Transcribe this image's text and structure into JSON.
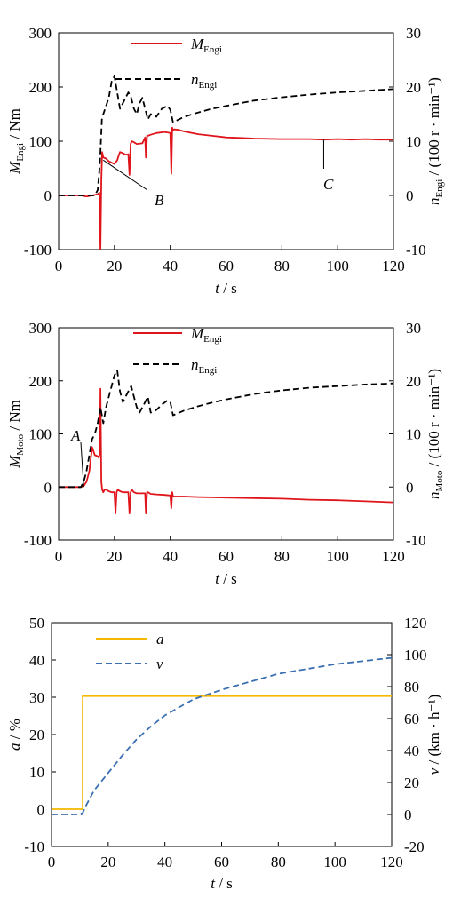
{
  "chart_data": [
    {
      "type": "line",
      "x_tick_labels": [
        "0",
        "20",
        "40",
        "60",
        "80",
        "100",
        "120"
      ],
      "xlabel": {
        "var": "t",
        "unit": " / s"
      },
      "xlim": [
        0,
        120
      ],
      "y_left": {
        "tick_labels": [
          "-100",
          "0",
          "100",
          "200",
          "300"
        ],
        "lim": [
          -100,
          300
        ],
        "label_var": "M",
        "label_sub": "Engi",
        "label_unit": " / Nm"
      },
      "y_right": {
        "tick_labels": [
          "-10",
          "0",
          "10",
          "20",
          "30"
        ],
        "lim": [
          -10,
          30
        ],
        "label_var": "n",
        "label_sub": "Engi",
        "label_unit": " / (100 r · min⁻¹)"
      },
      "series": [
        {
          "name": "M",
          "name_sub": "Engi",
          "axis": "left",
          "color": "#e0141b",
          "dash": "solid",
          "x": [
            0,
            8,
            10,
            12,
            14,
            14.6,
            15,
            15.3,
            15.6,
            16,
            17,
            18,
            20,
            21,
            21.6,
            22,
            23,
            24,
            25,
            25.4,
            25.8,
            26.2,
            27,
            28,
            30,
            31,
            31.3,
            31.7,
            32,
            33,
            35,
            38,
            40,
            40.4,
            40.7,
            41,
            41.5,
            43,
            45,
            47,
            50,
            55,
            60,
            65,
            70,
            80,
            90,
            95,
            100,
            105,
            110,
            115,
            120
          ],
          "y": [
            0,
            0,
            -2,
            0,
            2,
            5,
            -100,
            30,
            80,
            70,
            68,
            63,
            58,
            65,
            75,
            80,
            78,
            75,
            76,
            38,
            95,
            100,
            98,
            95,
            96,
            107,
            70,
            110,
            110,
            112,
            115,
            117,
            115,
            40,
            125,
            120,
            122,
            121,
            118,
            116,
            113,
            110,
            107,
            106,
            105,
            104,
            104,
            103,
            104,
            103,
            104,
            103,
            103
          ]
        },
        {
          "name": "n",
          "name_sub": "Engi",
          "axis": "right",
          "color": "#000000",
          "dash": "dashed",
          "x": [
            0,
            13,
            14,
            14.5,
            15,
            15.5,
            16,
            17,
            18,
            19,
            20,
            21,
            22,
            23,
            24,
            25,
            26,
            27,
            28,
            29,
            30,
            31,
            32,
            33,
            35,
            37,
            39,
            40,
            41,
            45,
            50,
            55,
            60,
            70,
            80,
            90,
            100,
            110,
            120
          ],
          "y": [
            0,
            0,
            1,
            4,
            8,
            14,
            15,
            16.5,
            18,
            21,
            22,
            19,
            16,
            17,
            18,
            19,
            18,
            16,
            15,
            17,
            18,
            16,
            14,
            15,
            14.5,
            16,
            16.5,
            15.8,
            13.5,
            14.5,
            15.3,
            16,
            16.5,
            17.5,
            18.1,
            18.6,
            19,
            19.3,
            19.6
          ]
        }
      ],
      "annotations": [
        "B",
        "C"
      ]
    },
    {
      "type": "line",
      "x_tick_labels": [
        "0",
        "20",
        "40",
        "60",
        "80",
        "100",
        "120"
      ],
      "xlabel": {
        "var": "t",
        "unit": " / s"
      },
      "xlim": [
        0,
        120
      ],
      "y_left": {
        "tick_labels": [
          "-100",
          "0",
          "100",
          "200",
          "300"
        ],
        "lim": [
          -100,
          300
        ],
        "label_var": "M",
        "label_sub": "Moto",
        "label_unit": " / Nm"
      },
      "y_right": {
        "tick_labels": [
          "-10",
          "0",
          "10",
          "20",
          "30"
        ],
        "lim": [
          -10,
          30
        ],
        "label_var": "n",
        "label_sub": "Moto",
        "label_unit": " / (100 r · min⁻¹)"
      },
      "series": [
        {
          "name": "M",
          "name_sub": "Engi",
          "axis": "left",
          "color": "#e0141b",
          "dash": "solid",
          "x": [
            0,
            8,
            9,
            10,
            11,
            12,
            13,
            14,
            14.4,
            14.8,
            15,
            15.3,
            15.6,
            16,
            16.5,
            17,
            18,
            19,
            20,
            20.4,
            20.8,
            21.2,
            22,
            23,
            24,
            25,
            25.4,
            25.8,
            26.2,
            27,
            28,
            30,
            31,
            31.3,
            31.7,
            32,
            33,
            35,
            38,
            40,
            40.4,
            40.7,
            41,
            45,
            50,
            60,
            70,
            80,
            90,
            100,
            110,
            120
          ],
          "y": [
            0,
            0,
            2,
            10,
            30,
            75,
            60,
            58,
            55,
            65,
            185,
            10,
            -5,
            -10,
            -5,
            -5,
            -8,
            -10,
            -10,
            -50,
            -10,
            -5,
            -8,
            -10,
            -10,
            -10,
            -50,
            -10,
            -5,
            -10,
            -12,
            -12,
            -12,
            -50,
            -10,
            -10,
            -13,
            -14,
            -15,
            -16,
            -40,
            -10,
            -18,
            -18,
            -19,
            -20,
            -21,
            -22,
            -24,
            -25,
            -27,
            -29
          ]
        },
        {
          "name": "n",
          "name_sub": "Engi",
          "axis": "right",
          "color": "#000000",
          "dash": "dashed",
          "x": [
            0,
            8,
            9,
            10,
            11,
            12,
            13,
            14,
            15,
            16,
            17,
            18,
            19,
            20,
            21,
            22,
            23,
            24,
            25,
            26,
            27,
            28,
            29,
            30,
            31,
            32,
            33,
            35,
            37,
            39,
            40,
            41,
            45,
            50,
            55,
            60,
            70,
            80,
            90,
            100,
            110,
            120
          ],
          "y": [
            0,
            0,
            1,
            3,
            6,
            9,
            10,
            12,
            15,
            12,
            15,
            17,
            19,
            21,
            22,
            18,
            16,
            17,
            18,
            19,
            17,
            15,
            14,
            15,
            16,
            17,
            14,
            14.5,
            15.5,
            16.3,
            16,
            13.5,
            14.4,
            15.2,
            15.9,
            16.5,
            17.5,
            18.2,
            18.7,
            19,
            19.3,
            19.5
          ]
        }
      ],
      "annotations": [
        "A"
      ]
    },
    {
      "type": "line",
      "x_tick_labels": [
        "0",
        "20",
        "40",
        "60",
        "80",
        "100",
        "120"
      ],
      "xlabel": {
        "var": "t",
        "unit": " / s"
      },
      "xlim": [
        0,
        120
      ],
      "y_left": {
        "tick_labels": [
          "-10",
          "0",
          "10",
          "20",
          "30",
          "40",
          "50"
        ],
        "lim": [
          -10,
          50
        ],
        "label_var": "a",
        "label_sub": "",
        "label_unit": " / %"
      },
      "y_right": {
        "tick_labels": [
          "-20",
          "0",
          "20",
          "40",
          "60",
          "80",
          "100",
          "120"
        ],
        "lim": [
          -20,
          120
        ],
        "label_var": "v",
        "label_sub": "",
        "label_unit": " / (km · h⁻¹)"
      },
      "series": [
        {
          "name": "a",
          "name_sub": "",
          "axis": "left",
          "color": "#f5b800",
          "dash": "solid",
          "x": [
            0,
            11,
            11,
            120
          ],
          "y": [
            0,
            0,
            30.3,
            30.3
          ]
        },
        {
          "name": "v",
          "name_sub": "",
          "axis": "right",
          "color": "#3a6fb0",
          "dash": "dashed",
          "x": [
            0,
            10,
            11,
            12,
            15,
            20,
            25,
            30,
            35,
            40,
            45,
            50,
            55,
            60,
            70,
            80,
            90,
            100,
            110,
            120
          ],
          "y": [
            0,
            0,
            1,
            5,
            15,
            26,
            37,
            47,
            55,
            62,
            67,
            72,
            75,
            78,
            83,
            88,
            91,
            94,
            96,
            98
          ]
        }
      ],
      "annotations": []
    }
  ]
}
